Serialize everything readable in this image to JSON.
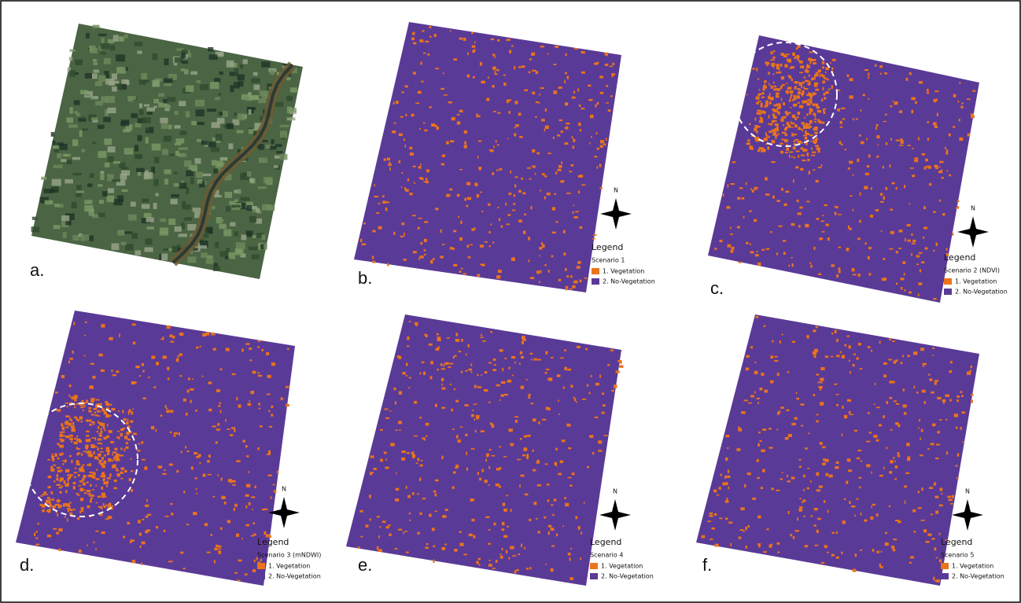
{
  "panels": [
    {
      "label": "a."
    },
    {
      "label": "b.",
      "north": "N",
      "legend": {
        "title": "Legend",
        "scenario": "Scenario 1",
        "items": [
          "1. Vegetation",
          "2. No-Vegetation"
        ]
      }
    },
    {
      "label": "c.",
      "north": "N",
      "legend": {
        "title": "Legend",
        "scenario": "Scenario 2 (NDVI)",
        "items": [
          "1. Vegetation",
          "2. No-Vegetation"
        ]
      }
    },
    {
      "label": "d.",
      "north": "N",
      "legend": {
        "title": "Legend",
        "scenario": "Scenario 3 (mNDWI)",
        "items": [
          "1. Vegetation",
          "2. No-Vegetation"
        ]
      }
    },
    {
      "label": "e.",
      "north": "N",
      "legend": {
        "title": "Legend",
        "scenario": "Scenario 4",
        "items": [
          "1. Vegetation",
          "2. No-Vegetation"
        ]
      }
    },
    {
      "label": "f.",
      "north": "N",
      "legend": {
        "title": "Legend",
        "scenario": "Scenario 5",
        "items": [
          "1. Vegetation",
          "2. No-Vegetation"
        ]
      }
    }
  ]
}
